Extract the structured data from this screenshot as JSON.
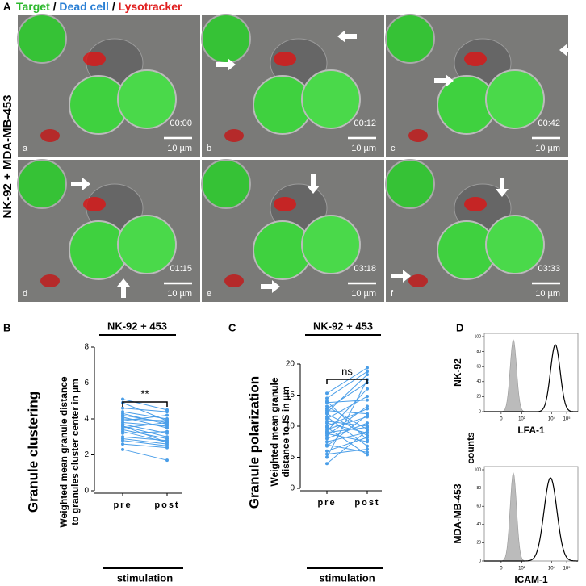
{
  "panel_a": {
    "letter": "A",
    "legend": {
      "target": "Target",
      "separator": "/",
      "dead_cell": "Dead cell",
      "lysotracker": "Lysotracker"
    },
    "side_label": "NK-92 + MDA-MB-453",
    "scale_bar": "10 µm",
    "frames": [
      {
        "label": "a",
        "time": "00:00"
      },
      {
        "label": "b",
        "time": "00:12"
      },
      {
        "label": "c",
        "time": "00:42"
      },
      {
        "label": "d",
        "time": "01:15"
      },
      {
        "label": "e",
        "time": "03:18"
      },
      {
        "label": "f",
        "time": "03:33"
      }
    ]
  },
  "panel_b": {
    "letter": "B",
    "title": "NK-92 + 453",
    "side_title": "Granule clustering",
    "y_label": [
      "Weighted mean granule distance",
      "to granules cluster center in µm"
    ],
    "categories": [
      "pre",
      "post"
    ],
    "x_label": "stimulation",
    "significance": "**",
    "ylim": [
      0,
      8
    ],
    "yticks": [
      0,
      2,
      4,
      6,
      8
    ],
    "color": "#4a9ee8",
    "pairs": [
      [
        5.1,
        4.5
      ],
      [
        4.9,
        3.9
      ],
      [
        4.6,
        4.4
      ],
      [
        4.4,
        4.0
      ],
      [
        4.2,
        3.8
      ],
      [
        4.1,
        3.5
      ],
      [
        4.0,
        3.9
      ],
      [
        3.9,
        4.2
      ],
      [
        3.8,
        3.6
      ],
      [
        3.7,
        3.2
      ],
      [
        3.6,
        3.0
      ],
      [
        3.5,
        3.8
      ],
      [
        3.4,
        2.9
      ],
      [
        3.3,
        2.7
      ],
      [
        3.2,
        3.3
      ],
      [
        3.0,
        2.8
      ],
      [
        2.9,
        2.6
      ],
      [
        2.8,
        2.5
      ],
      [
        2.6,
        2.4
      ],
      [
        2.3,
        1.7
      ],
      [
        3.6,
        2.7
      ],
      [
        4.3,
        3.7
      ]
    ]
  },
  "panel_c": {
    "letter": "C",
    "title": "NK-92 + 453",
    "side_title": "Granule polarization",
    "y_label": [
      "Weighted mean granule",
      "distance to IS in µm"
    ],
    "categories": [
      "pre",
      "post"
    ],
    "x_label": "stimulation",
    "significance": "ns",
    "ylim": [
      0,
      20
    ],
    "yticks": [
      0,
      5,
      10,
      15,
      20
    ],
    "color": "#4a9ee8",
    "pairs": [
      [
        15.3,
        19.4
      ],
      [
        14.5,
        18.8
      ],
      [
        13.8,
        14.2
      ],
      [
        13.2,
        9.5
      ],
      [
        12.8,
        17.0
      ],
      [
        12.5,
        12.0
      ],
      [
        12.0,
        8.5
      ],
      [
        11.5,
        6.8
      ],
      [
        11.2,
        14.8
      ],
      [
        10.8,
        10.0
      ],
      [
        10.5,
        8.9
      ],
      [
        10.0,
        12.8
      ],
      [
        9.8,
        5.4
      ],
      [
        9.5,
        11.5
      ],
      [
        9.0,
        9.8
      ],
      [
        8.8,
        7.5
      ],
      [
        8.5,
        13.2
      ],
      [
        8.0,
        10.5
      ],
      [
        7.5,
        9.0
      ],
      [
        7.0,
        5.8
      ],
      [
        6.8,
        11.8
      ],
      [
        6.0,
        8.2
      ],
      [
        5.5,
        6.3
      ],
      [
        5.0,
        17.5
      ],
      [
        4.0,
        9.3
      ],
      [
        14.0,
        7.8
      ],
      [
        12.2,
        18.3
      ],
      [
        9.2,
        16.0
      ]
    ]
  },
  "panel_d": {
    "letter": "D",
    "y_label": "counts",
    "rows": [
      {
        "label": "NK-92",
        "marker": "LFA-1"
      },
      {
        "label": "MDA-MB-453",
        "marker": "ICAM-1"
      }
    ],
    "yticks": [
      0,
      20,
      40,
      60,
      80,
      100
    ],
    "xtick_labels": [
      "0",
      "10²",
      "10⁴",
      "10⁵"
    ]
  }
}
